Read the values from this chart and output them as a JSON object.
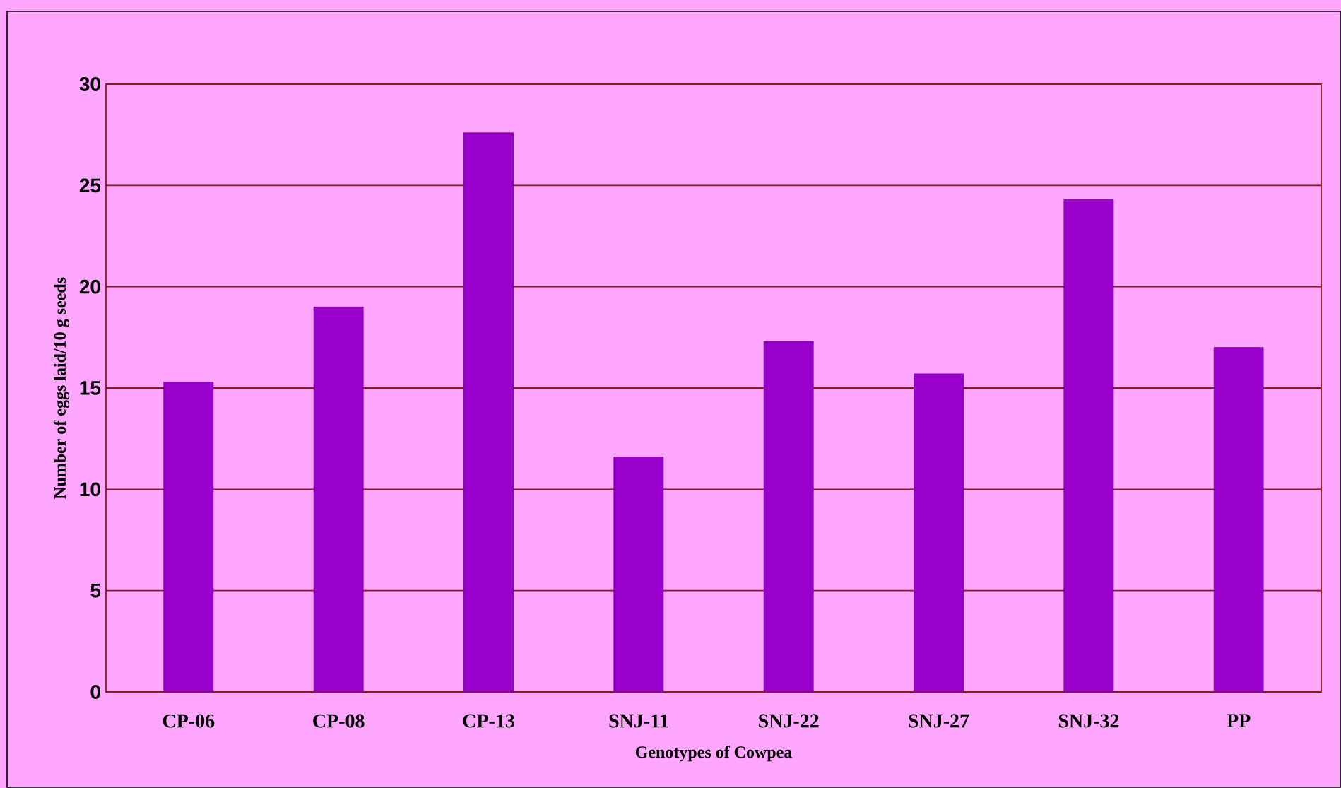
{
  "chart_data": {
    "type": "bar",
    "xlabel": "Genotypes of Cowpea",
    "ylabel": "Number of eggs laid/10 g seeds",
    "categories": [
      "CP-06",
      "CP-08",
      "CP-13",
      "SNJ-11",
      "SNJ-22",
      "SNJ-27",
      "SNJ-32",
      "PP"
    ],
    "values": [
      15.3,
      19.0,
      27.6,
      11.6,
      17.3,
      15.7,
      24.3,
      17.0
    ],
    "color": "#9900cc",
    "ylim": [
      0,
      30
    ],
    "yticks": [
      0,
      5,
      10,
      15,
      20,
      25,
      30
    ],
    "grid": "y"
  }
}
